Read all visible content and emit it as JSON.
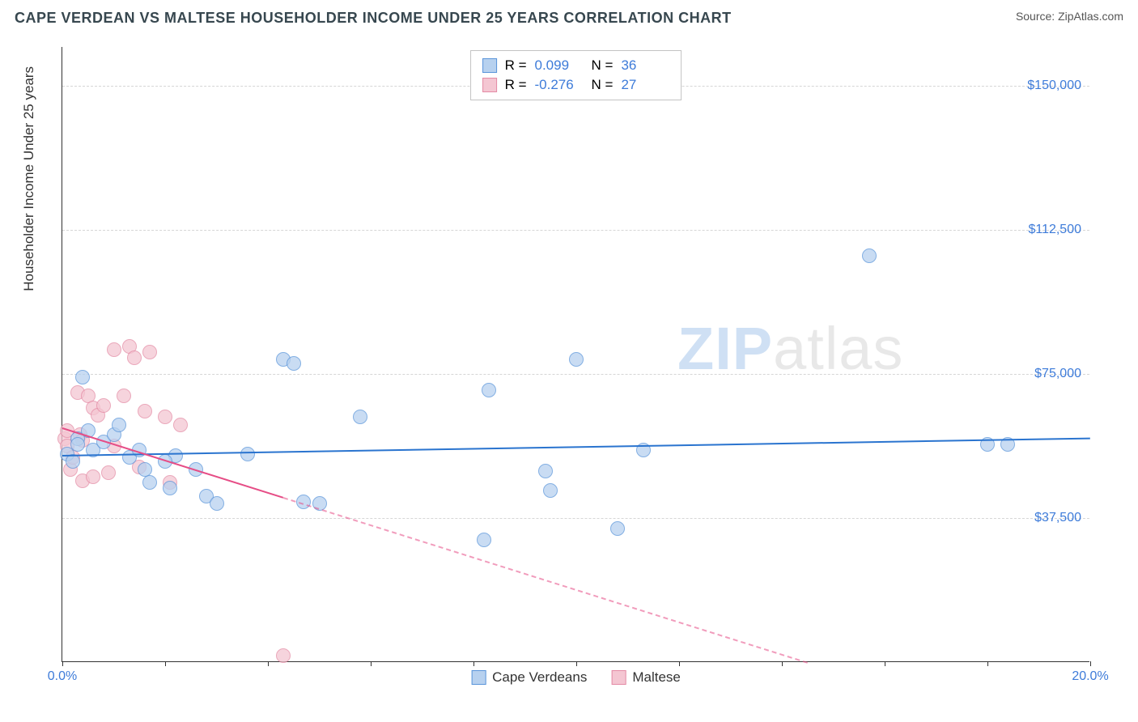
{
  "header": {
    "title": "CAPE VERDEAN VS MALTESE HOUSEHOLDER INCOME UNDER 25 YEARS CORRELATION CHART",
    "source_label": "Source:",
    "source_name": "ZipAtlas.com"
  },
  "watermark": {
    "zip": "ZIP",
    "atlas": "atlas"
  },
  "chart": {
    "type": "scatter",
    "y_axis_label": "Householder Income Under 25 years",
    "xlim": [
      0,
      20
    ],
    "ylim": [
      0,
      160000
    ],
    "x_tick_positions": [
      0,
      2,
      4,
      6,
      8,
      10,
      12,
      14,
      16,
      18,
      20
    ],
    "x_tick_labels": {
      "0": "0.0%",
      "20": "20.0%"
    },
    "y_gridlines": [
      37500,
      75000,
      112500,
      150000
    ],
    "y_tick_labels": [
      "$37,500",
      "$75,000",
      "$112,500",
      "$150,000"
    ],
    "background_color": "#ffffff",
    "grid_color": "#d6d6d6",
    "axis_color": "#333333",
    "tick_label_color": "#3d7bd9",
    "series": [
      {
        "name": "Cape Verdeans",
        "fill_color": "#b7d1ef",
        "fill_opacity": 0.75,
        "stroke_color": "#5a95da",
        "trend_color": "#2a74cf",
        "marker_radius": 9,
        "stats": {
          "R_label": "R =",
          "R": "0.099",
          "N_label": "N =",
          "N": "36",
          "value_color": "#3d7bd9"
        },
        "trend": {
          "x1": 0,
          "y1": 54000,
          "x2": 20,
          "y2": 58500,
          "dashed_after_x": null
        },
        "points": [
          [
            0.1,
            54000
          ],
          [
            0.2,
            52000
          ],
          [
            0.3,
            58000
          ],
          [
            0.3,
            56500
          ],
          [
            0.4,
            74000
          ],
          [
            0.5,
            60000
          ],
          [
            0.6,
            55000
          ],
          [
            0.8,
            57000
          ],
          [
            1.0,
            59000
          ],
          [
            1.1,
            61500
          ],
          [
            1.3,
            53000
          ],
          [
            1.5,
            55000
          ],
          [
            1.6,
            50000
          ],
          [
            1.7,
            46500
          ],
          [
            2.1,
            45000
          ],
          [
            2.2,
            53500
          ],
          [
            2.6,
            50000
          ],
          [
            2.8,
            43000
          ],
          [
            3.0,
            41000
          ],
          [
            3.6,
            54000
          ],
          [
            4.3,
            78500
          ],
          [
            4.5,
            77500
          ],
          [
            4.7,
            41500
          ],
          [
            5.0,
            41000
          ],
          [
            5.8,
            63500
          ],
          [
            8.2,
            31500
          ],
          [
            8.3,
            70500
          ],
          [
            9.4,
            49500
          ],
          [
            9.5,
            44500
          ],
          [
            10.0,
            78500
          ],
          [
            10.8,
            34500
          ],
          [
            11.3,
            55000
          ],
          [
            15.7,
            105500
          ],
          [
            18.0,
            56500
          ],
          [
            18.4,
            56500
          ],
          [
            2.0,
            52000
          ]
        ]
      },
      {
        "name": "Maltese",
        "fill_color": "#f4c6d2",
        "fill_opacity": 0.75,
        "stroke_color": "#e48ba5",
        "trend_color": "#e64d86",
        "marker_radius": 9,
        "stats": {
          "R_label": "R =",
          "R": "-0.276",
          "N_label": "N =",
          "N": "27",
          "value_color": "#3d7bd9"
        },
        "trend": {
          "x1": 0,
          "y1": 61000,
          "x2": 14.5,
          "y2": 0,
          "dashed_after_x": 4.3
        },
        "points": [
          [
            0.05,
            58000
          ],
          [
            0.1,
            60000
          ],
          [
            0.1,
            56000
          ],
          [
            0.15,
            50000
          ],
          [
            0.2,
            53000
          ],
          [
            0.3,
            70000
          ],
          [
            0.35,
            59000
          ],
          [
            0.4,
            57500
          ],
          [
            0.4,
            47000
          ],
          [
            0.5,
            69000
          ],
          [
            0.6,
            66000
          ],
          [
            0.6,
            48000
          ],
          [
            0.7,
            64000
          ],
          [
            0.8,
            66500
          ],
          [
            0.9,
            49000
          ],
          [
            1.0,
            56000
          ],
          [
            1.0,
            81000
          ],
          [
            1.2,
            69000
          ],
          [
            1.3,
            82000
          ],
          [
            1.4,
            79000
          ],
          [
            1.5,
            50500
          ],
          [
            1.6,
            65000
          ],
          [
            1.7,
            80500
          ],
          [
            2.0,
            63500
          ],
          [
            2.1,
            46500
          ],
          [
            2.3,
            61500
          ],
          [
            4.3,
            1500
          ]
        ]
      }
    ],
    "bottom_legend": [
      {
        "label": "Cape Verdeans",
        "fill": "#b7d1ef",
        "stroke": "#5a95da"
      },
      {
        "label": "Maltese",
        "fill": "#f4c6d2",
        "stroke": "#e48ba5"
      }
    ]
  }
}
